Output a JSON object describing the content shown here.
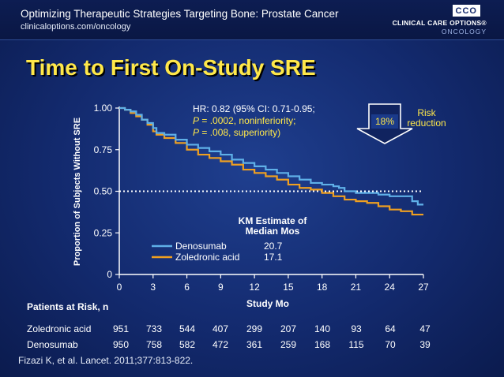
{
  "header": {
    "title": "Optimizing Therapeutic Strategies Targeting Bone: Prostate Cancer",
    "url": "clinicaloptions.com/oncology",
    "logo_mark": "CCO",
    "logo_line1": "CLINICAL CARE OPTIONS®",
    "logo_line2": "ONCOLOGY"
  },
  "slide_title": "Time to First On-Study SRE",
  "chart_data": {
    "type": "line",
    "title": "",
    "xlabel": "Study Mo",
    "ylabel": "Proportion of Subjects Without SRE",
    "xlim": [
      0,
      27
    ],
    "ylim": [
      0,
      1
    ],
    "x_ticks": [
      0,
      3,
      6,
      9,
      12,
      15,
      18,
      21,
      24,
      27
    ],
    "x_tick_labels": [
      "0",
      "3",
      "6",
      "9",
      "12",
      "15",
      "18",
      "21",
      "24",
      "27"
    ],
    "y_ticks": [
      0,
      0.25,
      0.5,
      0.75,
      1.0
    ],
    "y_tick_labels": [
      "0",
      "0.25",
      "0.50",
      "0.75",
      "1.00"
    ],
    "reference_line": {
      "y": 0.5,
      "style": "dotted",
      "color": "#ffffff"
    },
    "legend": {
      "title_line1": "KM Estimate of",
      "title_line2": "Median Mos",
      "placement": "bottom-center"
    },
    "series": [
      {
        "name": "Denosumab",
        "median": "20.7",
        "color": "#5fb0e8",
        "x": [
          0,
          0.5,
          1,
          1.5,
          2,
          2.5,
          3,
          3.3,
          4,
          5,
          6,
          7,
          8,
          9,
          10,
          11,
          12,
          13,
          14,
          15,
          16,
          17,
          18,
          19,
          19.5,
          20,
          21,
          22,
          23,
          24,
          25,
          26,
          26.5,
          27
        ],
        "y": [
          1.0,
          0.99,
          0.98,
          0.96,
          0.93,
          0.91,
          0.88,
          0.85,
          0.84,
          0.81,
          0.78,
          0.76,
          0.74,
          0.72,
          0.69,
          0.67,
          0.65,
          0.63,
          0.61,
          0.59,
          0.57,
          0.55,
          0.54,
          0.53,
          0.52,
          0.5,
          0.49,
          0.49,
          0.48,
          0.47,
          0.47,
          0.44,
          0.42,
          0.42
        ]
      },
      {
        "name": "Zoledronic acid",
        "median": "17.1",
        "color": "#f0a020",
        "x": [
          0,
          0.5,
          1,
          1.5,
          2,
          2.5,
          3,
          3.3,
          4,
          5,
          6,
          7,
          8,
          9,
          10,
          11,
          12,
          13,
          14,
          15,
          16,
          17,
          18,
          19,
          20,
          21,
          22,
          23,
          24,
          25,
          26,
          27
        ],
        "y": [
          1.0,
          0.99,
          0.97,
          0.95,
          0.93,
          0.9,
          0.86,
          0.84,
          0.82,
          0.79,
          0.75,
          0.72,
          0.7,
          0.68,
          0.66,
          0.63,
          0.61,
          0.59,
          0.57,
          0.54,
          0.52,
          0.51,
          0.49,
          0.47,
          0.45,
          0.44,
          0.43,
          0.41,
          0.39,
          0.38,
          0.36,
          0.36
        ]
      }
    ],
    "annotations": {
      "hr_line1": "HR: 0.82 (95% CI: 0.71-0.95;",
      "hr_line2_p": "P",
      "hr_line2_rest": " = .0002, noninferiority;",
      "hr_line3_p": "P",
      "hr_line3_rest": " = .008, superiority)",
      "risk_pct": "18%",
      "risk_line1": "Risk",
      "risk_line2": "reduction"
    }
  },
  "risk_table": {
    "title": "Patients at Risk, n",
    "rows": [
      {
        "label": "Zoledronic acid",
        "values": [
          "951",
          "733",
          "544",
          "407",
          "299",
          "207",
          "140",
          "93",
          "64",
          "47"
        ]
      },
      {
        "label": "Denosumab",
        "values": [
          "950",
          "758",
          "582",
          "472",
          "361",
          "259",
          "168",
          "115",
          "70",
          "39"
        ]
      }
    ]
  },
  "citation": "Fizazi K, et al. Lancet. 2011;377:813-822."
}
